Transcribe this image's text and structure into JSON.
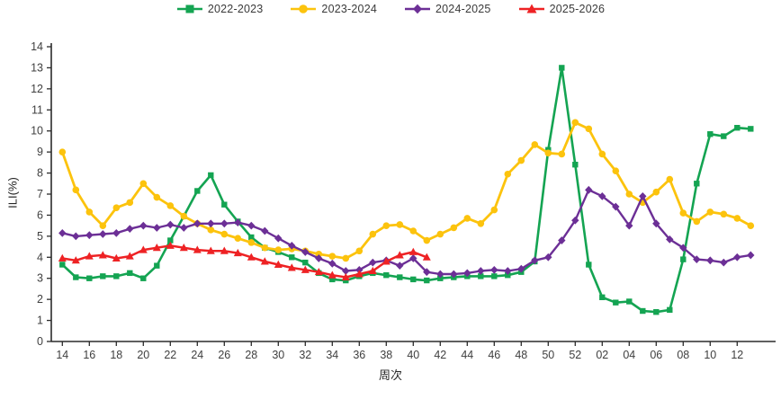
{
  "chart_data": {
    "type": "line",
    "title": "",
    "xlabel": "周次",
    "ylabel": "ILI(%)",
    "ylim": [
      0,
      14
    ],
    "y_ticks": [
      0,
      1,
      2,
      3,
      4,
      5,
      6,
      7,
      8,
      9,
      10,
      11,
      12,
      13,
      14
    ],
    "x_tick_labels": [
      "14",
      "16",
      "18",
      "20",
      "22",
      "24",
      "26",
      "28",
      "30",
      "32",
      "34",
      "36",
      "38",
      "40",
      "42",
      "44",
      "46",
      "48",
      "50",
      "52",
      "02",
      "04",
      "06",
      "08",
      "10",
      "12"
    ],
    "weeks": [
      "14",
      "15",
      "16",
      "17",
      "18",
      "19",
      "20",
      "21",
      "22",
      "23",
      "24",
      "25",
      "26",
      "27",
      "28",
      "29",
      "30",
      "31",
      "32",
      "33",
      "34",
      "35",
      "36",
      "37",
      "38",
      "39",
      "40",
      "41",
      "42",
      "43",
      "44",
      "45",
      "46",
      "47",
      "48",
      "49",
      "50",
      "51",
      "52",
      "01",
      "02",
      "03",
      "04",
      "05",
      "06",
      "07",
      "08",
      "09",
      "10",
      "11",
      "12",
      "13"
    ],
    "grid": false,
    "legend_position": "top-center",
    "axis_color": "#2b2b2b",
    "tick_label_color": "#404040",
    "series": [
      {
        "name": "2022-2023",
        "color": "#14a452",
        "marker": "square",
        "line_width": 2.6,
        "values": [
          3.65,
          3.05,
          3.0,
          3.1,
          3.1,
          3.25,
          3.0,
          3.6,
          4.8,
          5.95,
          7.15,
          7.9,
          6.5,
          5.7,
          4.95,
          4.45,
          4.25,
          4.0,
          3.75,
          3.25,
          2.95,
          2.9,
          3.1,
          3.25,
          3.15,
          3.05,
          2.95,
          2.9,
          3.0,
          3.05,
          3.1,
          3.1,
          3.1,
          3.15,
          3.3,
          3.8,
          9.1,
          13.0,
          8.4,
          3.65,
          2.1,
          1.85,
          1.9,
          1.45,
          1.4,
          1.5,
          3.9,
          7.5,
          9.85,
          9.75,
          10.15,
          10.1
        ]
      },
      {
        "name": "2023-2024",
        "color": "#fcc30d",
        "marker": "circle",
        "line_width": 2.8,
        "values": [
          9.0,
          7.2,
          6.15,
          5.5,
          6.35,
          6.6,
          7.5,
          6.85,
          6.45,
          5.95,
          5.6,
          5.3,
          5.1,
          4.9,
          4.7,
          4.45,
          4.35,
          4.4,
          4.3,
          4.15,
          4.05,
          3.95,
          4.3,
          5.1,
          5.5,
          5.55,
          5.25,
          4.8,
          5.1,
          5.4,
          5.85,
          5.6,
          6.25,
          7.95,
          8.6,
          9.35,
          8.95,
          8.9,
          10.4,
          10.1,
          8.9,
          8.1,
          7.0,
          6.6,
          7.1,
          7.7,
          6.1,
          5.7,
          6.15,
          6.05,
          5.85,
          5.5
        ]
      },
      {
        "name": "2024-2025",
        "color": "#6c2f96",
        "marker": "diamond",
        "line_width": 2.4,
        "values": [
          5.15,
          5.0,
          5.05,
          5.1,
          5.15,
          5.35,
          5.5,
          5.4,
          5.55,
          5.4,
          5.6,
          5.6,
          5.6,
          5.65,
          5.5,
          5.25,
          4.9,
          4.55,
          4.25,
          3.95,
          3.7,
          3.35,
          3.4,
          3.75,
          3.85,
          3.6,
          3.95,
          3.3,
          3.2,
          3.2,
          3.25,
          3.35,
          3.4,
          3.35,
          3.45,
          3.85,
          4.0,
          4.8,
          5.75,
          7.2,
          6.9,
          6.4,
          5.5,
          6.9,
          5.6,
          4.85,
          4.45,
          3.9,
          3.85,
          3.75,
          4.0,
          4.1
        ]
      },
      {
        "name": "2025-2026",
        "color": "#ee2224",
        "marker": "triangle",
        "line_width": 2.5,
        "values": [
          3.95,
          3.85,
          4.05,
          4.1,
          3.95,
          4.05,
          4.35,
          4.45,
          4.55,
          4.45,
          4.35,
          4.3,
          4.3,
          4.2,
          4.0,
          3.8,
          3.65,
          3.5,
          3.4,
          3.3,
          3.15,
          3.05,
          3.2,
          3.35,
          3.8,
          4.1,
          4.25,
          4.0
        ]
      }
    ]
  }
}
